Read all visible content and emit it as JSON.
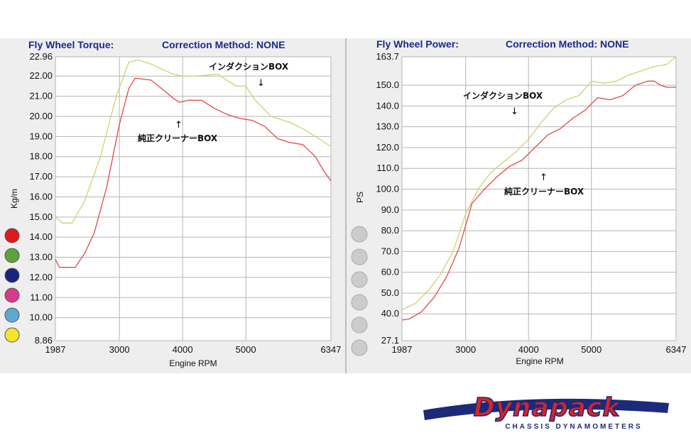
{
  "chart_data": [
    {
      "type": "line",
      "title": "Fly Wheel Torque:",
      "subtitle": "Correction Method: NONE",
      "xlabel": "Engine RPM",
      "ylabel": "Kg/m",
      "xlim": [
        1987,
        6347
      ],
      "ylim": [
        8.86,
        22.96
      ],
      "x_ticks": [
        "1987",
        "3000",
        "4000",
        "5000",
        "6347"
      ],
      "y_ticks": [
        "22.96",
        "22.00",
        "21.00",
        "20.00",
        "19.00",
        "18.00",
        "17.00",
        "16.00",
        "15.00",
        "14.00",
        "13.00",
        "12.00",
        "11.00",
        "10.00",
        "8.86"
      ],
      "grid": true,
      "legend_swatches": [
        "#e0191f",
        "#5da33a",
        "#1a237e",
        "#d63a8e",
        "#5aaad0",
        "#f2e62a"
      ],
      "series": [
        {
          "color": "#c8d66a",
          "x": [
            1987,
            2100,
            2250,
            2450,
            2700,
            2950,
            3150,
            3300,
            3500,
            3700,
            3850,
            4000,
            4200,
            4400,
            4550,
            4700,
            4850,
            5000,
            5150,
            5400,
            5700,
            5950,
            6200,
            6347
          ],
          "y": [
            15.0,
            14.7,
            14.7,
            15.8,
            18.0,
            21.0,
            22.7,
            22.8,
            22.6,
            22.3,
            22.1,
            22.0,
            22.0,
            22.05,
            22.1,
            21.8,
            21.5,
            21.5,
            20.8,
            20.0,
            19.7,
            19.3,
            18.8,
            18.5
          ]
        },
        {
          "color": "#e04848",
          "x": [
            1987,
            2050,
            2200,
            2300,
            2450,
            2600,
            2800,
            3000,
            3150,
            3250,
            3500,
            3700,
            3850,
            3950,
            4100,
            4300,
            4500,
            4700,
            4900,
            5100,
            5300,
            5500,
            5700,
            5900,
            6100,
            6250,
            6347
          ],
          "y": [
            12.9,
            12.5,
            12.5,
            12.5,
            13.2,
            14.2,
            16.5,
            19.6,
            21.4,
            21.9,
            21.8,
            21.3,
            20.9,
            20.7,
            20.8,
            20.8,
            20.4,
            20.1,
            19.9,
            19.8,
            19.5,
            18.9,
            18.7,
            18.6,
            18.0,
            17.2,
            16.8
          ]
        }
      ],
      "annotations": [
        "インダクションBOX",
        "純正クリーナーBOX"
      ]
    },
    {
      "type": "line",
      "title": "Fly Wheel Power:",
      "subtitle": "Correction Method: NONE",
      "xlabel": "Engine RPM",
      "ylabel": "PS",
      "xlim": [
        1987,
        6347
      ],
      "ylim": [
        27.1,
        163.7
      ],
      "x_ticks": [
        "1987",
        "3000",
        "4000",
        "5000",
        "6347"
      ],
      "y_ticks": [
        "163.7",
        "150.0",
        "140.0",
        "130.0",
        "120.0",
        "110.0",
        "100.0",
        "90.0",
        "80.0",
        "70.0",
        "60.0",
        "50.0",
        "40.0",
        "27.1"
      ],
      "grid": true,
      "legend_swatches": [
        "#cccccc",
        "#cccccc",
        "#cccccc",
        "#cccccc",
        "#cccccc",
        "#cccccc"
      ],
      "series": [
        {
          "color": "#c8d66a",
          "x": [
            1987,
            2200,
            2400,
            2600,
            2800,
            3000,
            3200,
            3400,
            3600,
            3800,
            4000,
            4200,
            4400,
            4600,
            4800,
            5000,
            5200,
            5400,
            5600,
            5800,
            6000,
            6200,
            6347
          ],
          "y": [
            42,
            45,
            51,
            59,
            70,
            88,
            100,
            108,
            113,
            118,
            124,
            132,
            139,
            143,
            145,
            152,
            151,
            152,
            155,
            157,
            159,
            160,
            163.7
          ]
        },
        {
          "color": "#e04848",
          "x": [
            1987,
            2100,
            2300,
            2500,
            2700,
            2900,
            3100,
            3300,
            3500,
            3700,
            3900,
            4100,
            4300,
            4500,
            4700,
            4900,
            5100,
            5300,
            5500,
            5700,
            5900,
            6000,
            6100,
            6200,
            6347
          ],
          "y": [
            37,
            37.5,
            41,
            48,
            58,
            72,
            93,
            100,
            106,
            111,
            114,
            120,
            126,
            129,
            134,
            138,
            144,
            143,
            145,
            150,
            152,
            152,
            150,
            149,
            149
          ]
        }
      ],
      "annotations": [
        "インダクションBOX",
        "純正クリーナーBOX"
      ]
    }
  ],
  "logo": {
    "brand": "Dynapack",
    "tagline": "CHASSIS DYNAMOMETERS"
  }
}
